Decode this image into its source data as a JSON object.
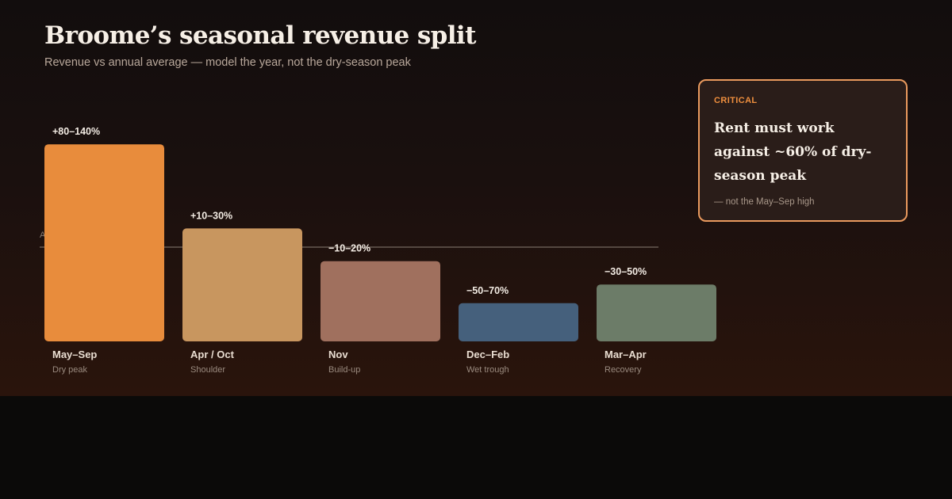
{
  "header": {
    "title": "Broome’s seasonal revenue split",
    "subtitle": "Revenue vs annual average — model the year, not the dry-season peak"
  },
  "callout": {
    "tag": "CRITICAL",
    "body": "Rent must work against ~60% of dry-season peak",
    "note": "— not the May–Sep high"
  },
  "colors": {
    "background": "#1a100e",
    "baseline": "#8a7d74",
    "callout_border": "#ea9a5e",
    "callout_tag": "#ef8f3e"
  },
  "chart_data": {
    "type": "bar",
    "categories": [
      "May–Sep",
      "Apr / Oct",
      "Nov",
      "Dec–Feb",
      "Mar–Apr"
    ],
    "sublabels": [
      "Dry peak",
      "Shoulder",
      "Build-up",
      "Wet trough",
      "Recovery"
    ],
    "data_labels": [
      "+80–140%",
      "+10–30%",
      "−10–20%",
      "−50–70%",
      "−30–50%"
    ],
    "values": [
      110,
      20,
      -15,
      -60,
      -40
    ],
    "colors": [
      "#e88c3c",
      "#c8965f",
      "#a0705e",
      "#45607c",
      "#6c7c68"
    ],
    "baseline_label": "Average",
    "baseline_value": 0,
    "ylim": [
      -100,
      140
    ],
    "title": "Broome’s seasonal revenue split",
    "subtitle": "Revenue vs annual average — model the year, not the dry-season peak",
    "xlabel": "",
    "ylabel": ""
  }
}
